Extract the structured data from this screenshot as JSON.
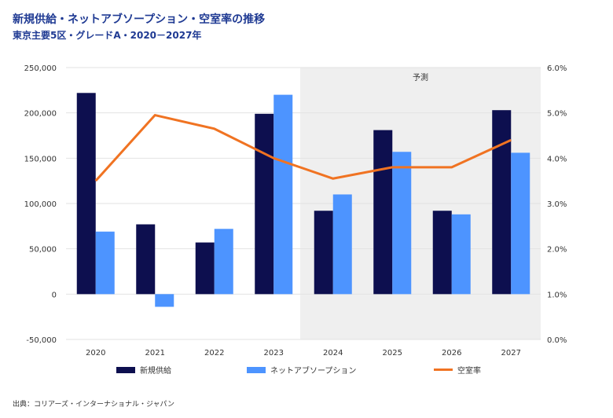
{
  "title": "新規供給・ネットアブソープション・空室率の推移",
  "subtitle": "東京主要5区・グレードA・2020－2027年",
  "forecast_label": "予測",
  "source": "出典：コリアーズ・インターナショナル・ジャパン",
  "colors": {
    "supply": "#0d0f4f",
    "absorption": "#4d94ff",
    "vacancy": "#f07322",
    "forecast_bg": "#efefef",
    "grid": "#e2e2e2"
  },
  "chart_data": {
    "type": "bar",
    "categories": [
      "2020",
      "2021",
      "2022",
      "2023",
      "2024",
      "2025",
      "2026",
      "2027"
    ],
    "forecast_start": "2024",
    "series": [
      {
        "name": "新規供給",
        "type": "bar",
        "axis": "left",
        "values": [
          222000,
          77000,
          57000,
          199000,
          92000,
          181000,
          92000,
          203000
        ]
      },
      {
        "name": "ネットアブソープション",
        "type": "bar",
        "axis": "left",
        "values": [
          69000,
          -14000,
          72000,
          220000,
          110000,
          157000,
          88000,
          156000
        ]
      },
      {
        "name": "空室率",
        "type": "line",
        "axis": "right",
        "values": [
          3.5,
          4.95,
          4.65,
          4.0,
          3.55,
          3.8,
          3.8,
          4.4
        ]
      }
    ],
    "ylim_left": [
      -50000,
      250000
    ],
    "yticks_left": [
      "-50,000",
      "0",
      "50,000",
      "100,000",
      "150,000",
      "200,000",
      "250,000"
    ],
    "ylim_right": [
      0,
      6
    ],
    "yticks_right": [
      "0.0%",
      "1.0%",
      "2.0%",
      "3.0%",
      "4.0%",
      "5.0%",
      "6.0%"
    ],
    "grid": true,
    "legend": "bottom"
  }
}
